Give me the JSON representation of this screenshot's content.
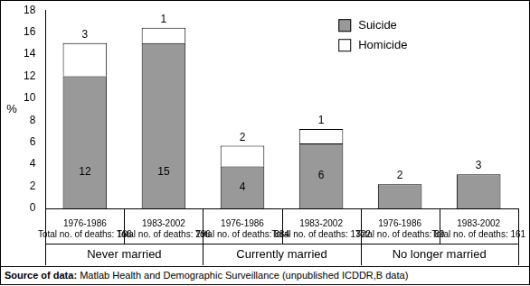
{
  "chart_data": {
    "type": "bar",
    "stacked": true,
    "y_label": "%",
    "categories": [
      [
        "1976-1986",
        "Total no. of deaths: 166"
      ],
      [
        "1983-2002",
        "Total no. of deaths: 296"
      ],
      [
        "1976-1986",
        "Total no. of deaths: 884"
      ],
      [
        "1983-2002",
        "Total no. of deaths: 1322"
      ],
      [
        "1976-1986",
        "Total no. of deaths: 89"
      ],
      [
        "1983-2002",
        "Total no. of deaths: 161"
      ]
    ],
    "category_groups": [
      "Never married",
      "Never married",
      "Currently married",
      "Currently married",
      "No longer married",
      "No longer married"
    ],
    "series": [
      {
        "name": "Suicide",
        "color": "#999999",
        "values": [
          12.0,
          15.0,
          3.8,
          5.9,
          2.2,
          3.1
        ],
        "value_labels": [
          "12",
          "15",
          "4",
          "6",
          "2",
          "3"
        ]
      },
      {
        "name": "Homicide",
        "color": "#ffffff",
        "values": [
          3.0,
          1.4,
          1.9,
          1.3,
          null,
          null
        ],
        "value_labels": [
          "3",
          "1",
          "2",
          "1",
          null,
          null
        ]
      }
    ],
    "ylim": [
      0,
      18
    ],
    "yticks": [
      0,
      2,
      4,
      6,
      8,
      10,
      12,
      14,
      16,
      18
    ],
    "grid": false,
    "legend": "upper right",
    "data_labels": true,
    "source": {
      "label": "Source of data:",
      "text": "Matlab Health and Demographic Surveillance (unpublished ICDDR,B data)"
    }
  }
}
